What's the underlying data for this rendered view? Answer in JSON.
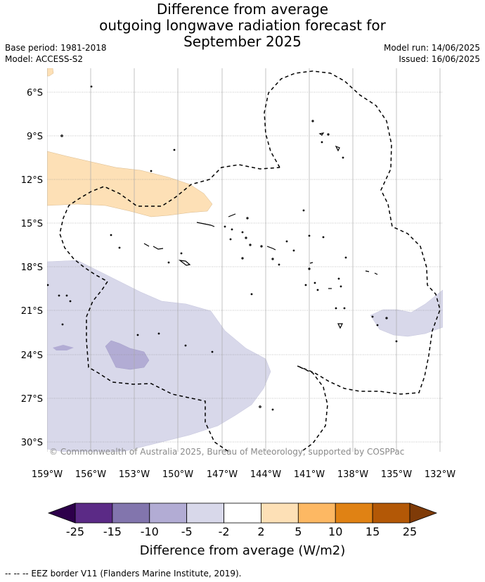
{
  "title": {
    "line1": "Difference from average",
    "line2": "outgoing longwave radiation forecast for",
    "line3": "September 2025"
  },
  "meta": {
    "base_period": "Base period: 1981-2018",
    "model": "Model: ACCESS-S2",
    "model_run": "Model run: 14/06/2025",
    "issued": "Issued: 16/06/2025"
  },
  "map": {
    "lat_labels": [
      "6°S",
      "9°S",
      "12°S",
      "15°S",
      "18°S",
      "21°S",
      "24°S",
      "27°S",
      "30°S"
    ],
    "lon_labels": [
      "159°W",
      "156°W",
      "153°W",
      "150°W",
      "147°W",
      "144°W",
      "141°W",
      "138°W",
      "135°W",
      "132°W"
    ],
    "copyright": "© Commonwealth of Australia 2025, Bureau of Meteorology, supported by COSPPac",
    "colors": {
      "pos_anomaly": "#fde0b6",
      "neg_anomaly": "#d8d8ea",
      "neg_anomaly_strong": "#b2acd4",
      "grid": "#888888",
      "eez": "#000000"
    }
  },
  "colorbar": {
    "ticks": [
      "-25",
      "-15",
      "-10",
      "-5",
      "-2",
      "2",
      "5",
      "10",
      "15",
      "25"
    ],
    "bins": [
      {
        "from": "-25",
        "to": "-15",
        "color": "#5b2a86"
      },
      {
        "from": "-15",
        "to": "-10",
        "color": "#8275ad"
      },
      {
        "from": "-10",
        "to": "-5",
        "color": "#b2acd4"
      },
      {
        "from": "-5",
        "to": "-2",
        "color": "#d8d8ea"
      },
      {
        "from": "-2",
        "to": "2",
        "color": "#ffffff"
      },
      {
        "from": "2",
        "to": "5",
        "color": "#fde0b6"
      },
      {
        "from": "5",
        "to": "10",
        "color": "#fdb863"
      },
      {
        "from": "10",
        "to": "15",
        "color": "#e08214"
      },
      {
        "from": "15",
        "to": "25",
        "color": "#b35806"
      }
    ],
    "under_color": "#2d004b",
    "over_color": "#7f3b08",
    "label": "Difference from average (W/m2)"
  },
  "footnote": "--  --  -- EEZ border V11 (Flanders Marine Institute, 2019)."
}
